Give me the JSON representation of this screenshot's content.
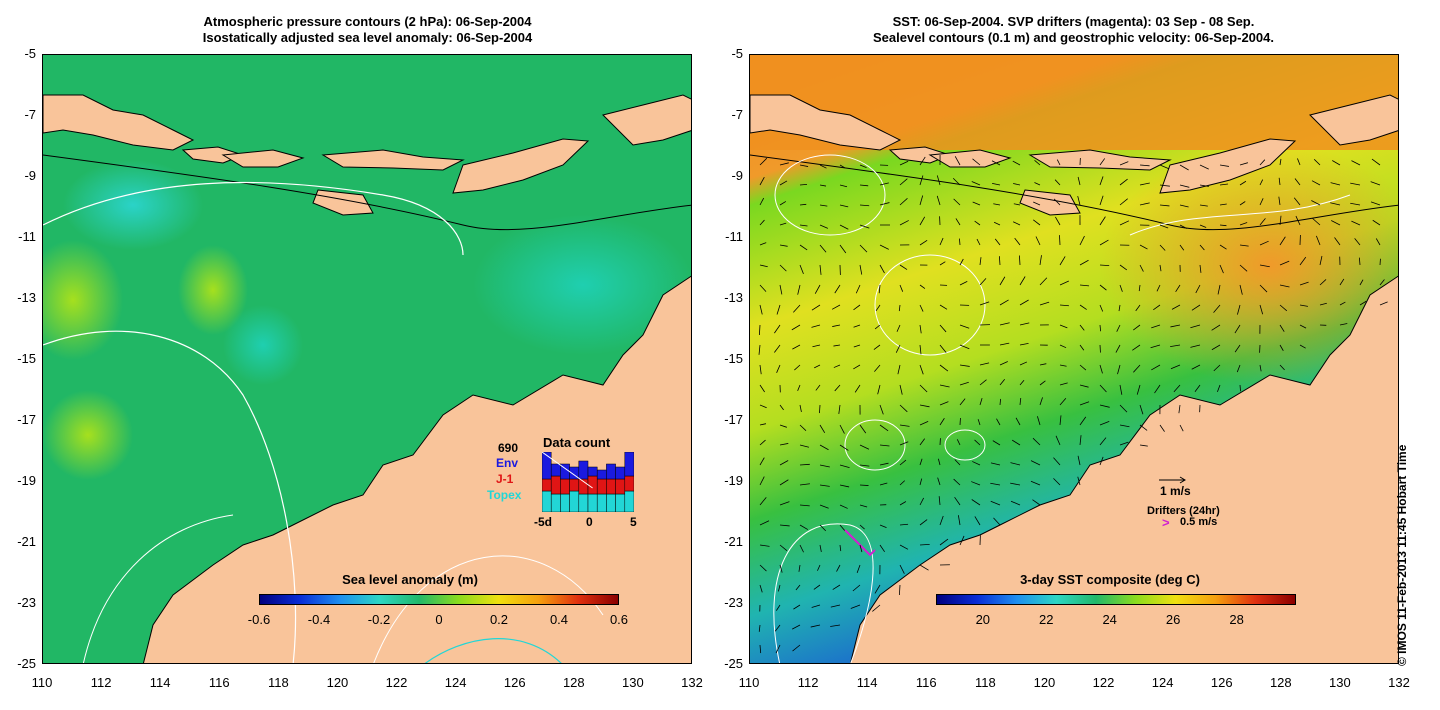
{
  "left_panel": {
    "title_line1": "Atmospheric pressure contours (2 hPa): 06-Sep-2004",
    "title_line2": "Isostatically adjusted sea level anomaly: 06-Sep-2004",
    "colorbar": {
      "title": "Sea level anomaly (m)",
      "ticks": [
        "-0.6",
        "-0.4",
        "-0.2",
        "0",
        "0.2",
        "0.4",
        "0.6"
      ]
    },
    "data_count": {
      "title": "Data count",
      "total": "690",
      "legend": [
        {
          "label": "Env",
          "color": "#1a1adf"
        },
        {
          "label": "J-1",
          "color": "#e01515"
        },
        {
          "label": "Topex",
          "color": "#22d6d6"
        }
      ],
      "xticks": [
        "-5d",
        "0",
        "5"
      ],
      "bars": [
        {
          "topex": 0.35,
          "j1": 0.2,
          "env": 0.45
        },
        {
          "topex": 0.3,
          "j1": 0.3,
          "env": 0.2
        },
        {
          "topex": 0.3,
          "j1": 0.25,
          "env": 0.25
        },
        {
          "topex": 0.35,
          "j1": 0.2,
          "env": 0.2
        },
        {
          "topex": 0.3,
          "j1": 0.25,
          "env": 0.3
        },
        {
          "topex": 0.3,
          "j1": 0.3,
          "env": 0.15
        },
        {
          "topex": 0.3,
          "j1": 0.25,
          "env": 0.15
        },
        {
          "topex": 0.3,
          "j1": 0.25,
          "env": 0.25
        },
        {
          "topex": 0.3,
          "j1": 0.25,
          "env": 0.2
        },
        {
          "topex": 0.35,
          "j1": 0.25,
          "env": 0.4
        }
      ]
    }
  },
  "right_panel": {
    "title_line1": "SST: 06-Sep-2004. SVP drifters (magenta): 03 Sep - 08 Sep.",
    "title_line2": "Sealevel contours (0.1 m) and geostrophic velocity: 06-Sep-2004.",
    "colorbar": {
      "title": "3-day SST composite (deg C)",
      "ticks": [
        "20",
        "22",
        "24",
        "26",
        "28"
      ]
    },
    "velocity_scale": "1 m/s",
    "drifters_label": "Drifters (24hr)",
    "drifter_scale": "0.5 m/s"
  },
  "axes": {
    "yticks": [
      "-5",
      "-7",
      "-9",
      "-11",
      "-13",
      "-15",
      "-17",
      "-19",
      "-21",
      "-23",
      "-25"
    ],
    "xticks": [
      "110",
      "112",
      "114",
      "116",
      "118",
      "120",
      "122",
      "124",
      "126",
      "128",
      "130",
      "132"
    ]
  },
  "credit": "© IMOS 11-Feb-2013 11:45 Hobart Time",
  "colors": {
    "land": "#f9c49a",
    "ocean_sla": "#22b86a",
    "sst_warm": "#f29a2a"
  }
}
